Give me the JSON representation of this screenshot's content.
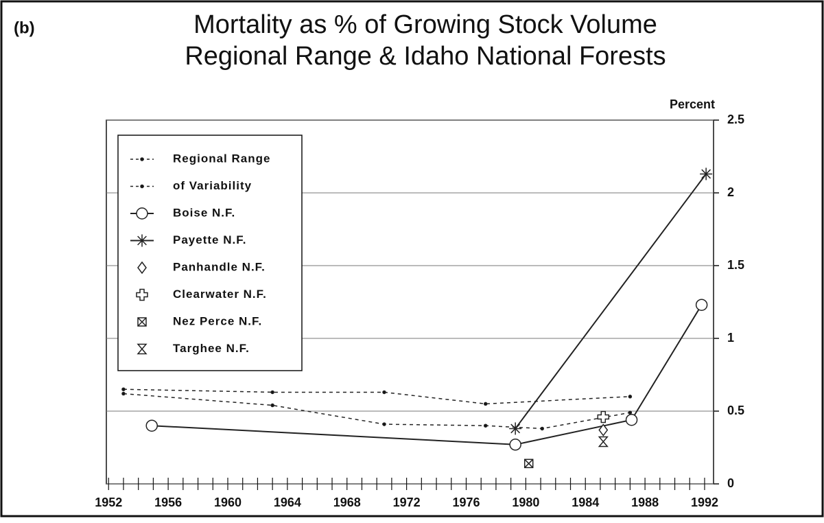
{
  "chart_data": {
    "type": "line",
    "panel_label": "(b)",
    "title": "Mortality as % of Growing Stock Volume",
    "subtitle": "Regional Range & Idaho National Forests",
    "y_label": "Percent",
    "xlim": [
      1951.85,
      1992.6
    ],
    "xticks": [
      1952,
      1956,
      1960,
      1964,
      1968,
      1972,
      1976,
      1980,
      1984,
      1988,
      1992
    ],
    "xminor_ticks": [
      1952,
      1953,
      1954,
      1955,
      1956,
      1957,
      1958,
      1959,
      1960,
      1961,
      1962,
      1963,
      1964,
      1965,
      1966,
      1967,
      1968,
      1969,
      1970,
      1971,
      1972,
      1973,
      1974,
      1975,
      1976,
      1977,
      1978,
      1979,
      1980,
      1981,
      1982,
      1983,
      1984,
      1985,
      1986,
      1987,
      1988,
      1989,
      1990,
      1991,
      1992
    ],
    "ylim": [
      0,
      2.5
    ],
    "yticks": [
      0,
      0.5,
      1,
      1.5,
      2,
      2.5
    ],
    "grid": true,
    "legend": "upper left",
    "series": [
      {
        "name": "Regional Range",
        "color": "#222",
        "line": "dashed",
        "marker": "dot",
        "x": [
          1953,
          1963,
          1970.5,
          1977.3,
          1987
        ],
        "values": [
          0.65,
          0.63,
          0.63,
          0.55,
          0.6
        ]
      },
      {
        "name": "of Variability",
        "color": "#222",
        "line": "dashed",
        "marker": "dot",
        "x": [
          1953,
          1963,
          1970.5,
          1977.3,
          1981.1,
          1987
        ],
        "values": [
          0.62,
          0.54,
          0.41,
          0.4,
          0.38,
          0.49
        ]
      },
      {
        "name": "Boise N.F.",
        "color": "#222",
        "line": "solid",
        "marker": "circle",
        "x": [
          1954.9,
          1979.3,
          1987.1,
          1991.8
        ],
        "values": [
          0.4,
          0.27,
          0.44,
          1.23
        ]
      },
      {
        "name": "Payette N.F.",
        "color": "#222",
        "line": "solid",
        "marker": "asterisk",
        "x": [
          1979.3,
          1992.1
        ],
        "values": [
          0.38,
          2.13
        ]
      },
      {
        "name": "Panhandle N.F.",
        "color": "#222",
        "line": "none",
        "marker": "diamond",
        "x": [
          1985.2
        ],
        "values": [
          0.37
        ]
      },
      {
        "name": "Clearwater N.F.",
        "color": "#222",
        "line": "none",
        "marker": "plus",
        "x": [
          1985.2
        ],
        "values": [
          0.46
        ]
      },
      {
        "name": "Nez Perce N.F.",
        "color": "#222",
        "line": "none",
        "marker": "boxx",
        "x": [
          1980.2
        ],
        "values": [
          0.14
        ]
      },
      {
        "name": "Targhee N.F.",
        "color": "#222",
        "line": "none",
        "marker": "hourglass",
        "x": [
          1985.2
        ],
        "values": [
          0.29
        ]
      }
    ]
  }
}
